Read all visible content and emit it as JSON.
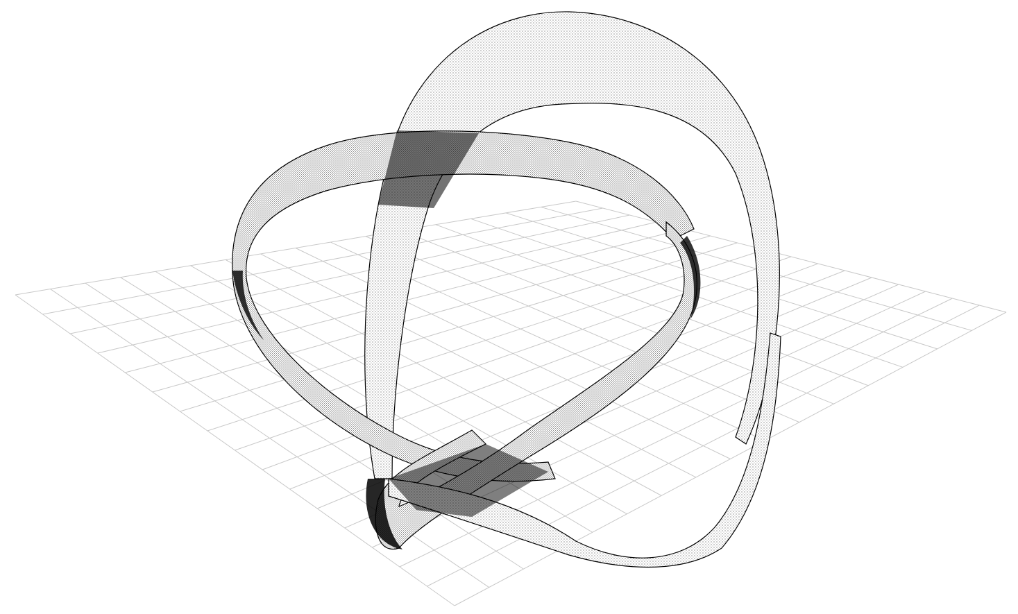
{
  "scene": {
    "subject": "twisted-ribbon-knot",
    "background_color": "#ffffff",
    "ribbon_color": "#000000",
    "grid_color": "#c8c8c8",
    "grid_visible": true,
    "grid_divisions": 16,
    "ribbon_lobes": 3,
    "rendering": "stippled-point-cloud"
  }
}
